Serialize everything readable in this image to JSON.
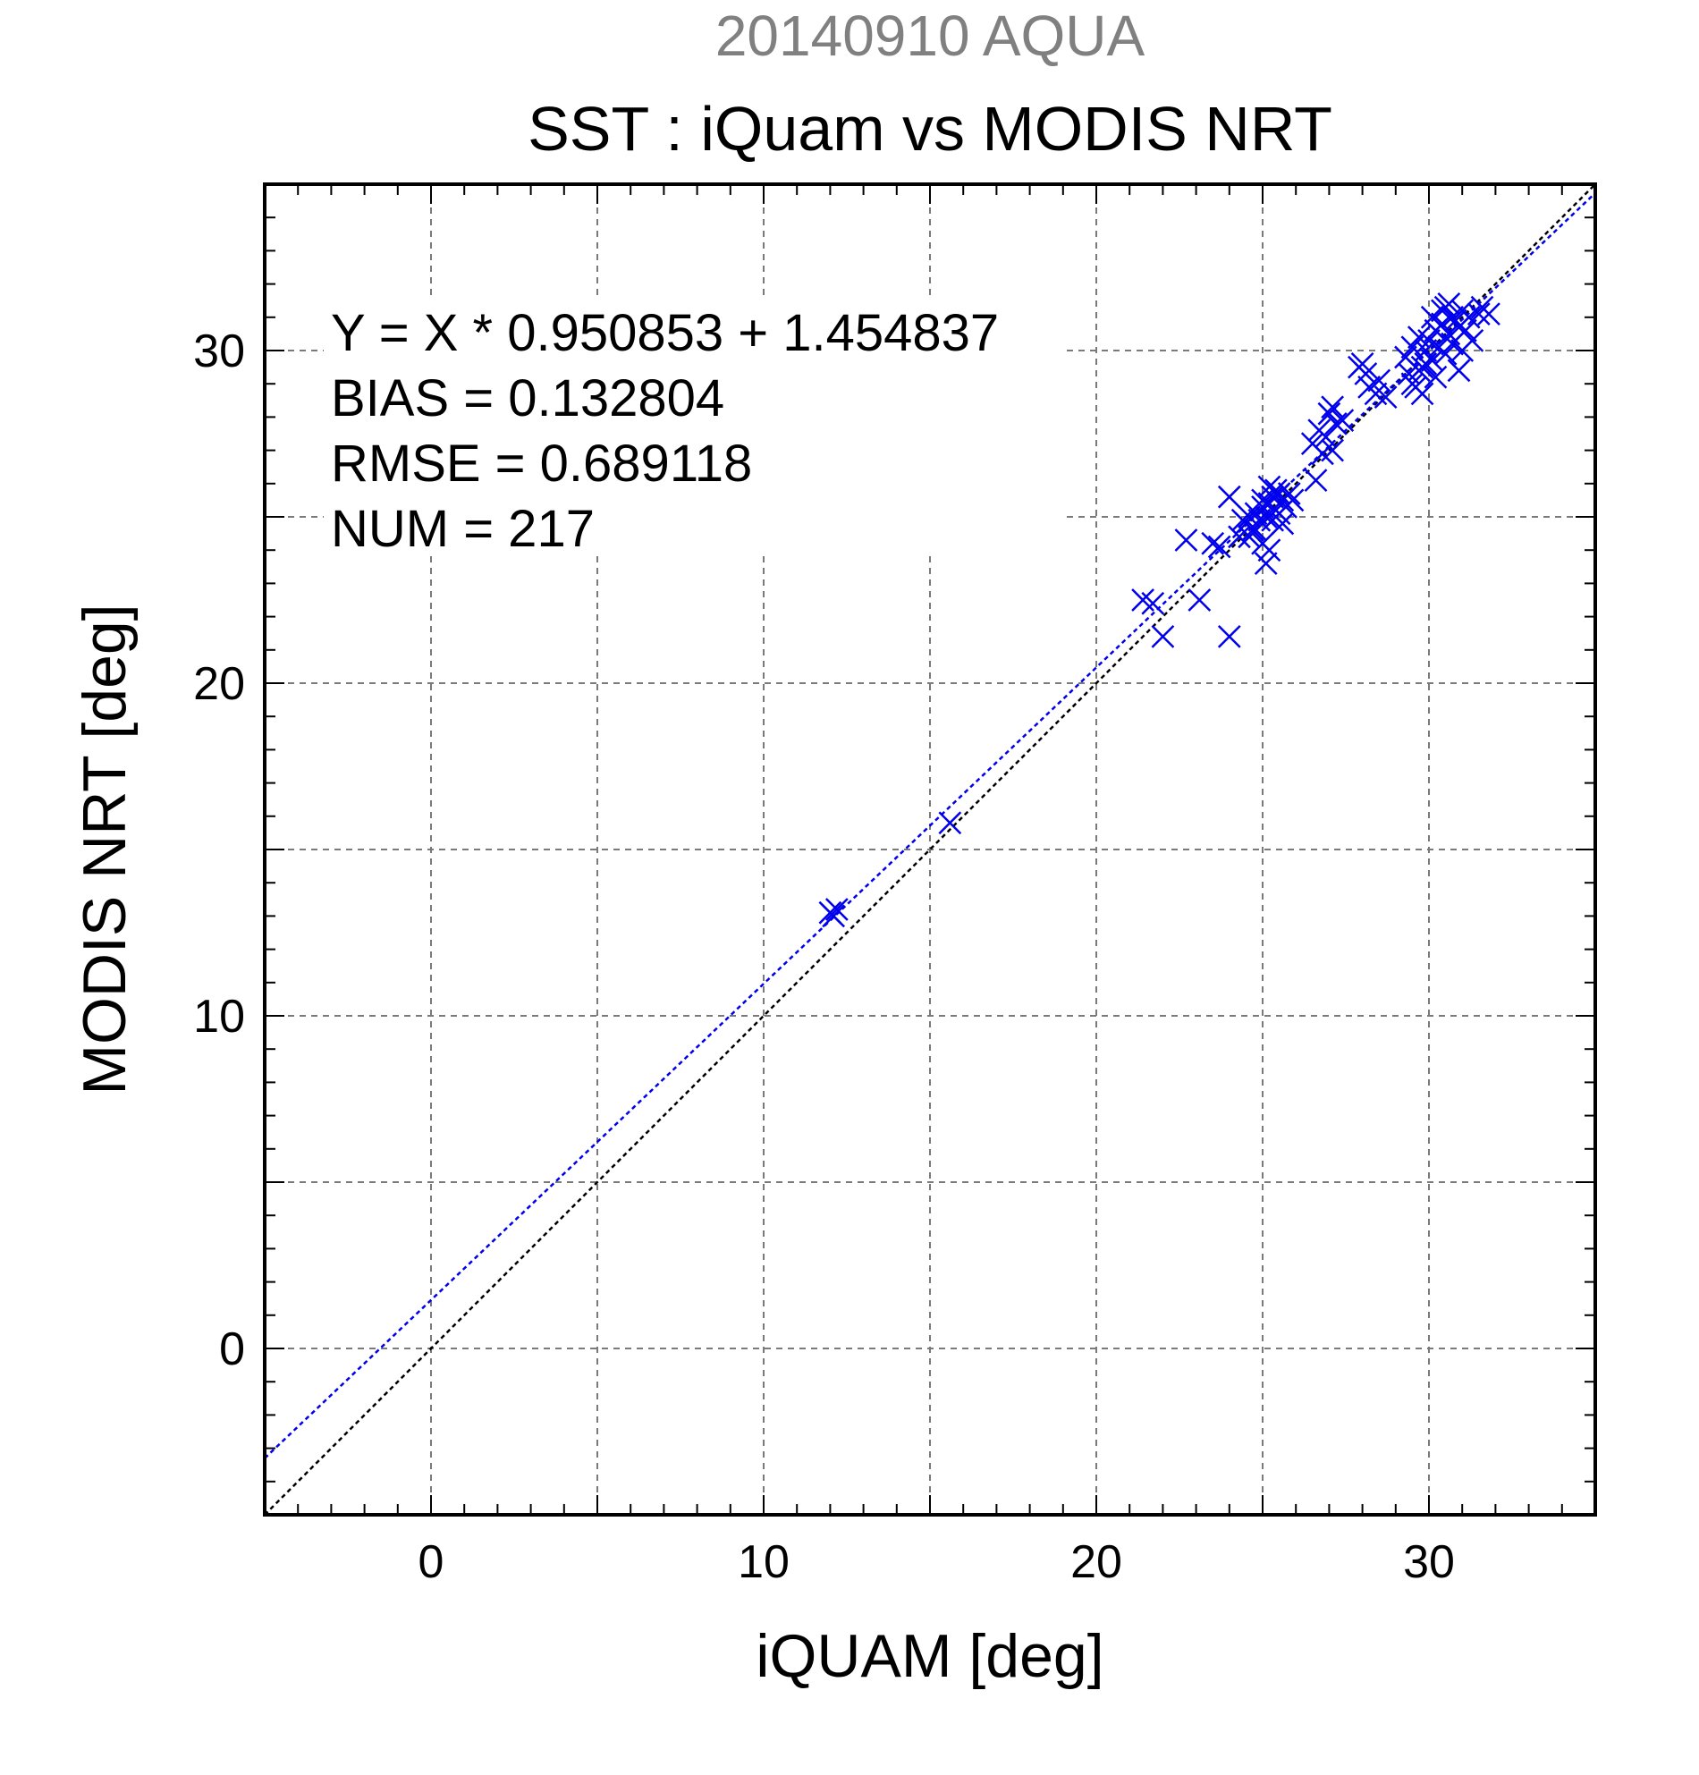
{
  "chart_data": {
    "type": "scatter",
    "supertitle": "20140910 AQUA",
    "title": "SST : iQuam vs MODIS NRT",
    "xlabel": "iQUAM [deg]",
    "ylabel": "MODIS NRT [deg]",
    "xlim": [
      -5,
      35
    ],
    "ylim": [
      -5,
      35
    ],
    "xticks": [
      0,
      10,
      20,
      30
    ],
    "yticks": [
      0,
      10,
      20,
      30
    ],
    "xtick_labels": [
      "0",
      "10",
      "20",
      "30"
    ],
    "ytick_labels": [
      "0",
      "10",
      "20",
      "30"
    ],
    "grid": true,
    "annotations": [
      "Y = X * 0.950853 + 1.454837",
      "BIAS = 0.132804",
      "RMSE = 0.689118",
      "NUM = 217"
    ],
    "fit_line": {
      "slope": 0.950853,
      "intercept": 1.454837,
      "color": "#0000ee"
    },
    "identity_line": {
      "slope": 1,
      "intercept": 0,
      "color": "#000000"
    },
    "marker": "x",
    "marker_color": "#0000ee",
    "points": [
      [
        12.0,
        13.1
      ],
      [
        12.1,
        13.0
      ],
      [
        12.2,
        13.2
      ],
      [
        15.6,
        15.8
      ],
      [
        21.4,
        22.5
      ],
      [
        21.7,
        22.4
      ],
      [
        22.0,
        21.4
      ],
      [
        22.7,
        24.3
      ],
      [
        23.1,
        22.5
      ],
      [
        23.5,
        24.2
      ],
      [
        23.7,
        24.1
      ],
      [
        24.0,
        21.4
      ],
      [
        24.0,
        25.6
      ],
      [
        24.3,
        24.4
      ],
      [
        24.5,
        24.8
      ],
      [
        24.6,
        25.0
      ],
      [
        24.7,
        24.6
      ],
      [
        24.8,
        25.1
      ],
      [
        24.9,
        24.9
      ],
      [
        25.0,
        24.2
      ],
      [
        25.0,
        25.3
      ],
      [
        25.1,
        23.6
      ],
      [
        25.1,
        25.0
      ],
      [
        25.2,
        25.4
      ],
      [
        25.2,
        24.0
      ],
      [
        25.3,
        25.6
      ],
      [
        25.3,
        24.9
      ],
      [
        25.4,
        25.2
      ],
      [
        25.4,
        25.8
      ],
      [
        25.5,
        25.1
      ],
      [
        25.6,
        25.5
      ],
      [
        25.6,
        24.8
      ],
      [
        25.7,
        25.3
      ],
      [
        25.8,
        25.7
      ],
      [
        24.6,
        24.4
      ],
      [
        24.8,
        24.6
      ],
      [
        25.0,
        25.5
      ],
      [
        25.2,
        25.9
      ],
      [
        25.5,
        25.7
      ],
      [
        24.4,
        24.9
      ],
      [
        25.9,
        25.5
      ],
      [
        26.5,
        27.2
      ],
      [
        26.6,
        26.1
      ],
      [
        26.7,
        27.6
      ],
      [
        26.8,
        26.9
      ],
      [
        26.9,
        27.4
      ],
      [
        27.0,
        28.1
      ],
      [
        27.1,
        27.0
      ],
      [
        27.2,
        27.8
      ],
      [
        27.4,
        27.9
      ],
      [
        27.1,
        28.3
      ],
      [
        27.9,
        29.5
      ],
      [
        28.0,
        29.6
      ],
      [
        28.2,
        28.9
      ],
      [
        28.4,
        28.7
      ],
      [
        28.5,
        29.1
      ],
      [
        28.7,
        28.6
      ],
      [
        28.1,
        29.3
      ],
      [
        29.3,
        29.8
      ],
      [
        29.4,
        29.3
      ],
      [
        29.5,
        30.1
      ],
      [
        29.6,
        28.9
      ],
      [
        29.7,
        30.4
      ],
      [
        29.8,
        29.5
      ],
      [
        29.8,
        28.7
      ],
      [
        29.9,
        30.0
      ],
      [
        30.0,
        30.3
      ],
      [
        30.1,
        29.7
      ],
      [
        30.2,
        30.6
      ],
      [
        30.3,
        30.1
      ],
      [
        30.4,
        31.2
      ],
      [
        30.5,
        29.9
      ],
      [
        30.6,
        30.5
      ],
      [
        30.6,
        31.4
      ],
      [
        30.7,
        30.2
      ],
      [
        30.8,
        30.9
      ],
      [
        30.9,
        29.4
      ],
      [
        31.0,
        31.2
      ],
      [
        31.0,
        30.0
      ],
      [
        31.1,
        30.6
      ],
      [
        31.2,
        31.0
      ],
      [
        31.3,
        30.3
      ],
      [
        31.5,
        31.1
      ],
      [
        31.6,
        31.3
      ],
      [
        31.8,
        31.1
      ],
      [
        29.5,
        29.0
      ],
      [
        29.9,
        29.6
      ],
      [
        30.2,
        29.2
      ],
      [
        30.4,
        30.8
      ],
      [
        30.7,
        31.0
      ],
      [
        30.1,
        31.0
      ],
      [
        29.7,
        29.4
      ],
      [
        30.5,
        31.3
      ],
      [
        30.9,
        30.7
      ]
    ]
  }
}
